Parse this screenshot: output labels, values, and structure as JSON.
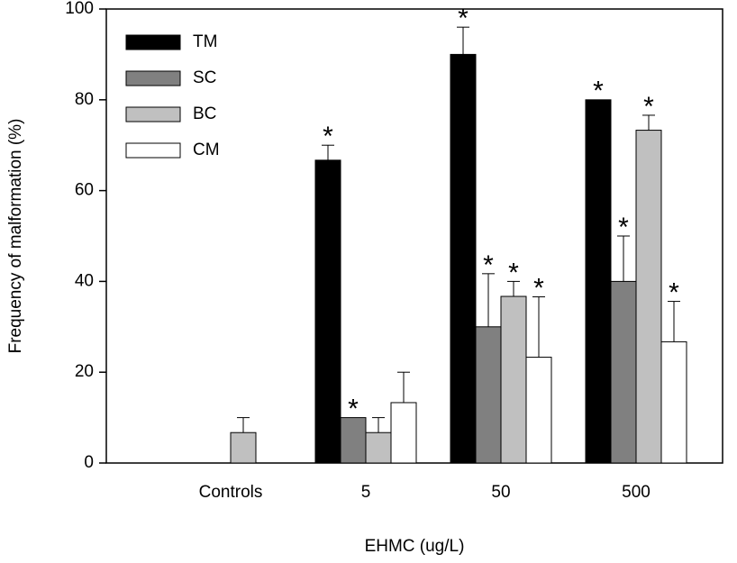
{
  "chart_data": {
    "type": "bar",
    "x_label": "EHMC (ug/L)",
    "y_label": "Frequency of malformation (%)",
    "categories": [
      "Controls",
      "5",
      "50",
      "500"
    ],
    "series": [
      {
        "name": "TM",
        "color": "#000000",
        "values": [
          0,
          66.7,
          90,
          80
        ],
        "errors": [
          null,
          3.3,
          6,
          null
        ],
        "labels": [
          null,
          "*",
          "*",
          "*"
        ]
      },
      {
        "name": "SC",
        "color": "#808080",
        "values": [
          0,
          10,
          30,
          40
        ],
        "errors": [
          null,
          null,
          11.7,
          10
        ],
        "labels": [
          null,
          "*",
          "*",
          "*"
        ]
      },
      {
        "name": "BC",
        "color": "#c0c0c0",
        "values": [
          6.7,
          6.7,
          36.7,
          73.3
        ],
        "errors": [
          3.3,
          3.3,
          3.3,
          3.3
        ],
        "labels": [
          null,
          null,
          "*",
          "*"
        ]
      },
      {
        "name": "CM",
        "color": "#ffffff",
        "values": [
          0,
          13.3,
          23.3,
          26.7
        ],
        "errors": [
          null,
          6.7,
          13.3,
          8.9
        ],
        "labels": [
          null,
          null,
          "*",
          "*"
        ]
      }
    ],
    "ylim": [
      0,
      100
    ],
    "yticks": [
      0,
      20,
      40,
      60,
      80,
      100
    ],
    "legend": "upper left"
  }
}
